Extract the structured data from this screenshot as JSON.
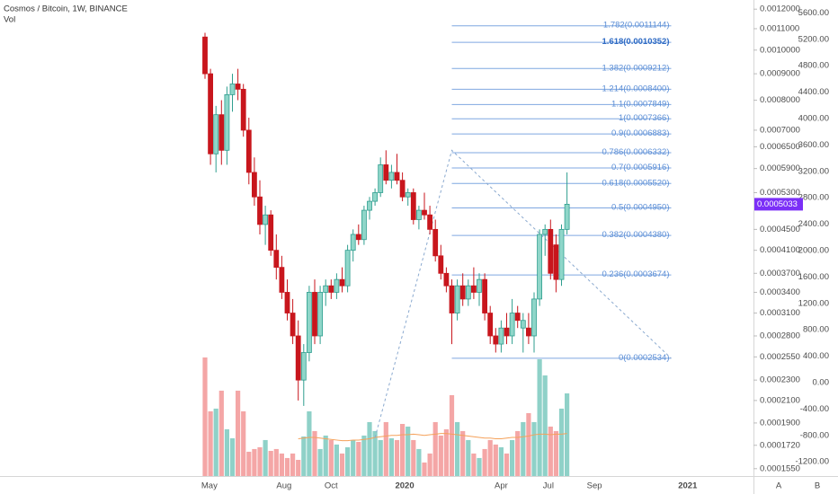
{
  "chart_data": {
    "type": "candlestick",
    "title": "Cosmos / Bitcoin, 1W, BINANCE",
    "indicator": "Vol",
    "log_scale": true,
    "up_color": "#8fd6c9",
    "up_edge": "#2f9e8f",
    "down_color": "#c8161d",
    "volume_up_color": "#8fd1c8",
    "volume_down_color": "#f4a6a6",
    "ma_color": "#f5a15a",
    "fib_color": "#7fa7e0",
    "last_price_color": "#7b2ff7",
    "candles": [
      {
        "open": 0.00106,
        "high": 0.00108,
        "low": 0.00088,
        "close": 0.0009
      },
      {
        "open": 0.0009,
        "high": 0.00092,
        "low": 0.0006,
        "close": 0.00063
      },
      {
        "open": 0.00063,
        "high": 0.00078,
        "low": 0.00058,
        "close": 0.00075
      },
      {
        "open": 0.00075,
        "high": 0.0008,
        "low": 0.0006,
        "close": 0.00064
      },
      {
        "open": 0.00064,
        "high": 0.00085,
        "low": 0.0006,
        "close": 0.00082
      },
      {
        "open": 0.00082,
        "high": 0.0009,
        "low": 0.00076,
        "close": 0.00086
      },
      {
        "open": 0.00086,
        "high": 0.00092,
        "low": 0.0008,
        "close": 0.00084
      },
      {
        "open": 0.00084,
        "high": 0.00086,
        "low": 0.00068,
        "close": 0.0007
      },
      {
        "open": 0.0007,
        "high": 0.00074,
        "low": 0.00055,
        "close": 0.00058
      },
      {
        "open": 0.00058,
        "high": 0.00062,
        "low": 0.0005,
        "close": 0.00052
      },
      {
        "open": 0.00052,
        "high": 0.00056,
        "low": 0.00044,
        "close": 0.00046
      },
      {
        "open": 0.00046,
        "high": 0.0005,
        "low": 0.00042,
        "close": 0.00048
      },
      {
        "open": 0.00048,
        "high": 0.00049,
        "low": 0.0004,
        "close": 0.00041
      },
      {
        "open": 0.00041,
        "high": 0.00044,
        "low": 0.00036,
        "close": 0.00038
      },
      {
        "open": 0.00038,
        "high": 0.0004,
        "low": 0.00033,
        "close": 0.00034
      },
      {
        "open": 0.00034,
        "high": 0.00036,
        "low": 0.0003,
        "close": 0.00031
      },
      {
        "open": 0.00031,
        "high": 0.00033,
        "low": 0.00027,
        "close": 0.00028
      },
      {
        "open": 0.00028,
        "high": 0.0003,
        "low": 0.00021,
        "close": 0.00023
      },
      {
        "open": 0.00023,
        "high": 0.00027,
        "low": 0.000205,
        "close": 0.00026
      },
      {
        "open": 0.00026,
        "high": 0.00035,
        "low": 0.00025,
        "close": 0.00034
      },
      {
        "open": 0.00034,
        "high": 0.00036,
        "low": 0.00027,
        "close": 0.00028
      },
      {
        "open": 0.00028,
        "high": 0.00035,
        "low": 0.00027,
        "close": 0.00034
      },
      {
        "open": 0.00034,
        "high": 0.00036,
        "low": 0.00032,
        "close": 0.00035
      },
      {
        "open": 0.00035,
        "high": 0.00036,
        "low": 0.00033,
        "close": 0.00034
      },
      {
        "open": 0.00034,
        "high": 0.00037,
        "low": 0.00033,
        "close": 0.00036
      },
      {
        "open": 0.00036,
        "high": 0.00038,
        "low": 0.00034,
        "close": 0.00035
      },
      {
        "open": 0.00035,
        "high": 0.00042,
        "low": 0.00034,
        "close": 0.00041
      },
      {
        "open": 0.00041,
        "high": 0.00045,
        "low": 0.00039,
        "close": 0.00044
      },
      {
        "open": 0.00044,
        "high": 0.00046,
        "low": 0.00042,
        "close": 0.00043
      },
      {
        "open": 0.00043,
        "high": 0.0005,
        "low": 0.00042,
        "close": 0.00049
      },
      {
        "open": 0.00049,
        "high": 0.00052,
        "low": 0.00047,
        "close": 0.00051
      },
      {
        "open": 0.00051,
        "high": 0.00054,
        "low": 0.0005,
        "close": 0.00053
      },
      {
        "open": 0.00053,
        "high": 0.00062,
        "low": 0.00052,
        "close": 0.0006
      },
      {
        "open": 0.0006,
        "high": 0.00064,
        "low": 0.00055,
        "close": 0.00056
      },
      {
        "open": 0.00056,
        "high": 0.0006,
        "low": 0.00054,
        "close": 0.00058
      },
      {
        "open": 0.00058,
        "high": 0.00063,
        "low": 0.00055,
        "close": 0.00056
      },
      {
        "open": 0.00056,
        "high": 0.00058,
        "low": 0.00051,
        "close": 0.00052
      },
      {
        "open": 0.00052,
        "high": 0.00054,
        "low": 0.0005,
        "close": 0.00053
      },
      {
        "open": 0.00053,
        "high": 0.00054,
        "low": 0.00046,
        "close": 0.00047
      },
      {
        "open": 0.00047,
        "high": 0.0005,
        "low": 0.00045,
        "close": 0.00049
      },
      {
        "open": 0.00049,
        "high": 0.00053,
        "low": 0.00047,
        "close": 0.00048
      },
      {
        "open": 0.00048,
        "high": 0.0005,
        "low": 0.00044,
        "close": 0.00045
      },
      {
        "open": 0.00045,
        "high": 0.00047,
        "low": 0.00039,
        "close": 0.0004
      },
      {
        "open": 0.0004,
        "high": 0.00042,
        "low": 0.00036,
        "close": 0.00037
      },
      {
        "open": 0.00037,
        "high": 0.00038,
        "low": 0.00034,
        "close": 0.00035
      },
      {
        "open": 0.00035,
        "high": 0.00036,
        "low": 0.00027,
        "close": 0.00031
      },
      {
        "open": 0.00031,
        "high": 0.00036,
        "low": 0.0003,
        "close": 0.00035
      },
      {
        "open": 0.00035,
        "high": 0.00037,
        "low": 0.00032,
        "close": 0.00033
      },
      {
        "open": 0.00033,
        "high": 0.00036,
        "low": 0.00032,
        "close": 0.00035
      },
      {
        "open": 0.00035,
        "high": 0.00038,
        "low": 0.00033,
        "close": 0.00034
      },
      {
        "open": 0.00034,
        "high": 0.00037,
        "low": 0.00032,
        "close": 0.00036
      },
      {
        "open": 0.00036,
        "high": 0.00037,
        "low": 0.0003,
        "close": 0.00031
      },
      {
        "open": 0.00031,
        "high": 0.00032,
        "low": 0.00027,
        "close": 0.00028
      },
      {
        "open": 0.00028,
        "high": 0.00029,
        "low": 0.00026,
        "close": 0.00027
      },
      {
        "open": 0.00027,
        "high": 0.0003,
        "low": 0.00026,
        "close": 0.00029
      },
      {
        "open": 0.00029,
        "high": 0.00031,
        "low": 0.00027,
        "close": 0.00028
      },
      {
        "open": 0.00028,
        "high": 0.00033,
        "low": 0.00027,
        "close": 0.00031
      },
      {
        "open": 0.00031,
        "high": 0.00032,
        "low": 0.00029,
        "close": 0.0003
      },
      {
        "open": 0.00029,
        "high": 0.00031,
        "low": 0.00026,
        "close": 0.0003
      },
      {
        "open": 0.00029,
        "high": 0.00031,
        "low": 0.00027,
        "close": 0.00028
      },
      {
        "open": 0.00028,
        "high": 0.00034,
        "low": 0.00026,
        "close": 0.00033
      },
      {
        "open": 0.00033,
        "high": 0.00045,
        "low": 0.00032,
        "close": 0.00044
      },
      {
        "open": 0.00044,
        "high": 0.00046,
        "low": 0.0004,
        "close": 0.00045
      },
      {
        "open": 0.00045,
        "high": 0.00047,
        "low": 0.00036,
        "close": 0.00037
      },
      {
        "open": 0.00042,
        "high": 0.00044,
        "low": 0.00034,
        "close": 0.00036
      },
      {
        "open": 0.00036,
        "high": 0.00046,
        "low": 0.00035,
        "close": 0.00045
      },
      {
        "open": 0.00045,
        "high": 0.00058,
        "low": 0.00044,
        "close": 0.0005033
      }
    ],
    "volume": [
      381,
      -435,
      -394,
      -122,
      -707,
      -843,
      -122,
      -435,
      -1047,
      -1006,
      -979,
      -870,
      -1034,
      -1006,
      -1074,
      -1142,
      -1074,
      -1170,
      -816,
      -435,
      -734,
      -1006,
      -802,
      -870,
      -938,
      -1074,
      -979,
      -870,
      -898,
      -802,
      -598,
      -734,
      -870,
      -598,
      -843,
      -870,
      -626,
      -666,
      -870,
      -1006,
      -1210,
      -1074,
      -598,
      -802,
      -707,
      -190,
      -598,
      -734,
      -870,
      -1074,
      -1142,
      -1006,
      -870,
      -938,
      -979,
      -1074,
      -870,
      -734,
      -598,
      -462,
      -598,
      354,
      109,
      -666,
      -734,
      -394,
      -163
    ],
    "volume_ma": [
      null,
      null,
      null,
      null,
      null,
      null,
      null,
      null,
      null,
      null,
      null,
      null,
      null,
      null,
      null,
      null,
      null,
      -850,
      -840,
      -830,
      -830,
      -840,
      -850,
      -860,
      -870,
      -880,
      -880,
      -870,
      -870,
      -860,
      -850,
      -830,
      -820,
      -810,
      -800,
      -800,
      -790,
      -790,
      -780,
      -790,
      -800,
      -790,
      -780,
      -770,
      -770,
      -780,
      -790,
      -800,
      -810,
      -820,
      -830,
      -840,
      -840,
      -850,
      -850,
      -840,
      -830,
      -830,
      -820,
      -810,
      -790,
      -780,
      -780,
      -790,
      -780,
      -780,
      -770
    ],
    "ylim": [
      0.00015,
      0.00125
    ],
    "yticks": [
      {
        "value": 0.0012,
        "label": "0.0012000"
      },
      {
        "value": 0.0011,
        "label": "0.0011000"
      },
      {
        "value": 0.001,
        "label": "0.0010000"
      },
      {
        "value": 0.0009,
        "label": "0.0009000"
      },
      {
        "value": 0.0008,
        "label": "0.0008000"
      },
      {
        "value": 0.0007,
        "label": "0.0007000"
      },
      {
        "value": 0.00065,
        "label": "0.0006500"
      },
      {
        "value": 0.00059,
        "label": "0.0005900"
      },
      {
        "value": 0.00053,
        "label": "0.0005300"
      },
      {
        "value": 0.00045,
        "label": "0.0004500"
      },
      {
        "value": 0.00041,
        "label": "0.0004100"
      },
      {
        "value": 0.00037,
        "label": "0.0003700"
      },
      {
        "value": 0.00034,
        "label": "0.0003400"
      },
      {
        "value": 0.00031,
        "label": "0.0003100"
      },
      {
        "value": 0.00028,
        "label": "0.0002800"
      },
      {
        "value": 0.000255,
        "label": "0.0002550"
      },
      {
        "value": 0.00023,
        "label": "0.0002300"
      },
      {
        "value": 0.00021,
        "label": "0.0002100"
      },
      {
        "value": 0.00019,
        "label": "0.0001900"
      },
      {
        "value": 0.000172,
        "label": "0.0001720"
      },
      {
        "value": 0.000155,
        "label": "0.0001550"
      }
    ],
    "y2lim": [
      -1415,
      5795
    ],
    "y2ticks": [
      {
        "value": 5600,
        "label": "5600.00"
      },
      {
        "value": 5200,
        "label": "5200.00"
      },
      {
        "value": 4800,
        "label": "4800.00"
      },
      {
        "value": 4400,
        "label": "4400.00"
      },
      {
        "value": 4000,
        "label": "4000.00"
      },
      {
        "value": 3600,
        "label": "3600.00"
      },
      {
        "value": 3200,
        "label": "3200.00"
      },
      {
        "value": 2800,
        "label": "2800.00"
      },
      {
        "value": 2400,
        "label": "2400.00"
      },
      {
        "value": 2000,
        "label": "2000.00"
      },
      {
        "value": 1600,
        "label": "1600.00"
      },
      {
        "value": 1200,
        "label": "1200.00"
      },
      {
        "value": 800,
        "label": "800.00"
      },
      {
        "value": 400,
        "label": "400.00"
      },
      {
        "value": 0,
        "label": "0.00"
      },
      {
        "value": -400,
        "label": "-400.00"
      },
      {
        "value": -800,
        "label": "-800.00"
      },
      {
        "value": -1200,
        "label": "-1200.00"
      }
    ],
    "xticks": [
      {
        "value": 0.8,
        "label": "May"
      },
      {
        "value": 14.4,
        "label": "Aug"
      },
      {
        "value": 23,
        "label": "Oct"
      },
      {
        "value": 36.4,
        "label": "2020"
      },
      {
        "value": 54,
        "label": "Apr"
      },
      {
        "value": 62.6,
        "label": "Jul"
      },
      {
        "value": 71,
        "label": "Sep"
      },
      {
        "value": 88,
        "label": "2021"
      }
    ],
    "fib_anchors": [
      {
        "x": 31,
        "y": 0.000178
      },
      {
        "x": 45,
        "y": 0.00064
      },
      {
        "x": 85,
        "y": 0.0002534
      }
    ],
    "fib_levels": [
      {
        "value": 0.0011144,
        "label": "1.782(0.0011144)"
      },
      {
        "value": 0.0010352,
        "label": "1.618(0.0010352)",
        "highlight": true
      },
      {
        "value": 0.0009212,
        "label": "1.382(0.0009212)"
      },
      {
        "value": 0.00084,
        "label": "1.214(0.0008400)"
      },
      {
        "value": 0.0007849,
        "label": "1.1(0.0007849)"
      },
      {
        "value": 0.0007366,
        "label": "1(0.0007366)"
      },
      {
        "value": 0.0006883,
        "label": "0.9(0.0006883)"
      },
      {
        "value": 0.0006332,
        "label": "0.786(0.0006332)"
      },
      {
        "value": 0.0005916,
        "label": "0.7(0.0005916)"
      },
      {
        "value": 0.000552,
        "label": "0.618(0.0005520)"
      },
      {
        "value": 0.000495,
        "label": "0.5(0.0004950)"
      },
      {
        "value": 0.000438,
        "label": "0.382(0.0004380)"
      },
      {
        "value": 0.0003674,
        "label": "0.236(0.0003674)"
      },
      {
        "value": 0.0002534,
        "label": "0(0.0002534)"
      }
    ],
    "buttons": [
      "A",
      "B"
    ]
  }
}
